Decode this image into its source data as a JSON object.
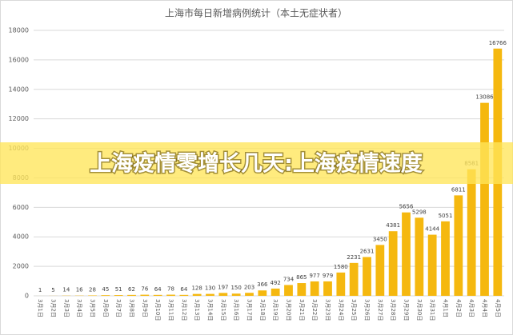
{
  "chart_data": {
    "type": "bar",
    "title": "上海市每日新增病例统计（本土无症状者）",
    "banner": "上海疫情零增长几天:上海疫情速度",
    "categories": [
      "3月1日",
      "3月2日",
      "3月3日",
      "3月4日",
      "3月5日",
      "3月6日",
      "3月7日",
      "3月8日",
      "3月9日",
      "3月10日",
      "3月11日",
      "3月12日",
      "3月13日",
      "3月14日",
      "3月15日",
      "3月16日",
      "3月17日",
      "3月18日",
      "3月19日",
      "3月20日",
      "3月21日",
      "3月22日",
      "3月23日",
      "3月24日",
      "3月25日",
      "3月26日",
      "3月27日",
      "3月28日",
      "3月29日",
      "3月30日",
      "3月31日",
      "4月1日",
      "4月2日",
      "4月3日",
      "4月4日",
      "4月5日"
    ],
    "values": [
      1,
      5,
      14,
      16,
      28,
      45,
      51,
      62,
      76,
      64,
      78,
      64,
      128,
      130,
      197,
      150,
      203,
      366,
      492,
      734,
      865,
      977,
      979,
      1580,
      2231,
      2631,
      3450,
      4381,
      5656,
      5298,
      4144,
      5051,
      6811,
      8581,
      13086,
      16766
    ],
    "color": "#f5b80f",
    "ylim": [
      0,
      18000
    ],
    "yticks": [
      0,
      2000,
      4000,
      6000,
      8000,
      10000,
      12000,
      14000,
      16000,
      18000
    ],
    "grid": true
  }
}
